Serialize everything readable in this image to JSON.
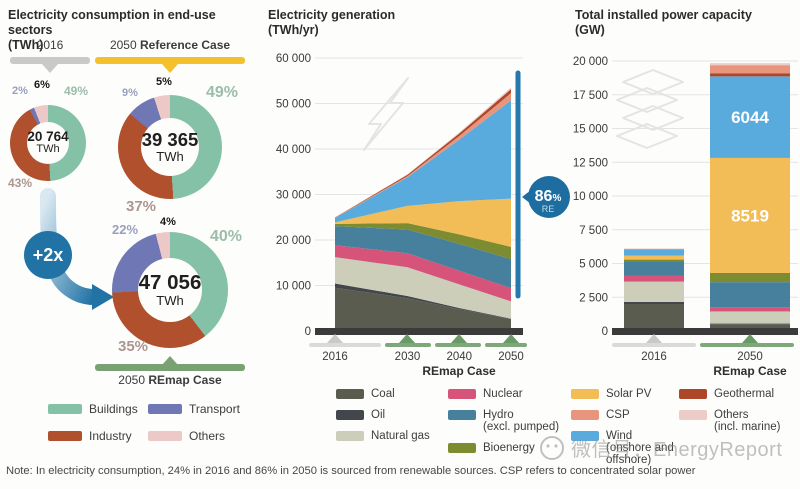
{
  "panels": {
    "consumption": {
      "title": "Electricity consumption in end-use sectors",
      "unit": "(TWh)",
      "header_2016": "2016",
      "header_ref_prefix": "2050 ",
      "header_ref_bold": "Reference Case",
      "footer_prefix": "2050 ",
      "footer_bold": "REmap Case",
      "growth_badge": "+2x",
      "colors": {
        "bar_2016": "#c9c9c9",
        "bar_ref": "#f3c02e",
        "bar_remap": "#7aa174",
        "badge_blue": "#2173a5"
      },
      "legend": [
        {
          "label": "Buildings",
          "color": "#85c1a7"
        },
        {
          "label": "Transport",
          "color": "#6f77b5"
        },
        {
          "label": "Industry",
          "color": "#b0502d"
        },
        {
          "label": "Others",
          "color": "#ecc9c7"
        }
      ]
    },
    "generation": {
      "title": "Electricity generation",
      "unit": "(TWh/yr)"
    },
    "capacity": {
      "title": "Total installed power capacity",
      "unit": "(GW)"
    }
  },
  "chart_data": [
    {
      "type": "pie",
      "subtype": "donut",
      "scenario": "2016",
      "center_value": "20 764",
      "center_unit": "TWh",
      "slices": [
        {
          "label": "Buildings",
          "pct": 49,
          "pct_label": "49%",
          "color": "#85c1a7"
        },
        {
          "label": "Industry",
          "pct": 43,
          "pct_label": "43%",
          "color": "#b0502d"
        },
        {
          "label": "Transport",
          "pct": 2,
          "pct_label": "2%",
          "color": "#6f77b5"
        },
        {
          "label": "Others",
          "pct": 6,
          "pct_label": "6%",
          "color": "#ecc9c7"
        }
      ]
    },
    {
      "type": "pie",
      "subtype": "donut",
      "scenario": "2050 Reference Case",
      "center_value": "39 365",
      "center_unit": "TWh",
      "slices": [
        {
          "label": "Buildings",
          "pct": 49,
          "pct_label": "49%",
          "color": "#85c1a7"
        },
        {
          "label": "Industry",
          "pct": 37,
          "pct_label": "37%",
          "color": "#b0502d"
        },
        {
          "label": "Transport",
          "pct": 9,
          "pct_label": "9%",
          "color": "#6f77b5"
        },
        {
          "label": "Others",
          "pct": 5,
          "pct_label": "5%",
          "color": "#ecc9c7"
        }
      ]
    },
    {
      "type": "pie",
      "subtype": "donut",
      "scenario": "2050 REmap Case",
      "center_value": "47 056",
      "center_unit": "TWh",
      "slices": [
        {
          "label": "Buildings",
          "pct": 40,
          "pct_label": "40%",
          "color": "#85c1a7"
        },
        {
          "label": "Industry",
          "pct": 35,
          "pct_label": "35%",
          "color": "#b0502d"
        },
        {
          "label": "Transport",
          "pct": 22,
          "pct_label": "22%",
          "color": "#6f77b5"
        },
        {
          "label": "Others",
          "pct": 4,
          "pct_label": "4%",
          "color": "#ecc9c7"
        }
      ]
    },
    {
      "type": "area",
      "title": "Electricity generation",
      "ylabel": "TWh/yr",
      "x": [
        2016,
        2030,
        2040,
        2050
      ],
      "x_labels": [
        "2016",
        "2030",
        "2040",
        "2050"
      ],
      "xcase_label": "REmap Case",
      "ylim": [
        0,
        60000
      ],
      "grid": true,
      "yticks": [
        {
          "v": 0,
          "label": "0"
        },
        {
          "v": 10000,
          "label": "10 000"
        },
        {
          "v": 20000,
          "label": "20 000"
        },
        {
          "v": 30000,
          "label": "30 000"
        },
        {
          "v": 40000,
          "label": "40 000"
        },
        {
          "v": 50000,
          "label": "50 000"
        },
        {
          "v": 60000,
          "label": "60 000"
        }
      ],
      "annotation": {
        "big": "86",
        "sym": "%",
        "sub": "RE",
        "color": "#1e6da0"
      },
      "series": [
        {
          "name": "Coal",
          "color": "#5a5c50",
          "values": [
            9500,
            7200,
            4800,
            2600
          ]
        },
        {
          "name": "Oil",
          "color": "#43474b",
          "values": [
            950,
            500,
            250,
            100
          ]
        },
        {
          "name": "Natural gas",
          "color": "#ccceba",
          "values": [
            5800,
            6300,
            5200,
            3800
          ]
        },
        {
          "name": "Nuclear",
          "color": "#d6537a",
          "values": [
            2600,
            3100,
            3000,
            2900
          ]
        },
        {
          "name": "Hydro (excl. pumped)",
          "color": "#47809c",
          "values": [
            4200,
            5200,
            5900,
            6400
          ]
        },
        {
          "name": "Bioenergy",
          "color": "#7d8b31",
          "values": [
            500,
            1400,
            2100,
            2700
          ]
        },
        {
          "name": "Solar PV",
          "color": "#f2bc57",
          "values": [
            330,
            3800,
            7300,
            10600
          ]
        },
        {
          "name": "Wind (onshore and offshore)",
          "color": "#5aabdd",
          "values": [
            960,
            6300,
            13500,
            21600
          ]
        },
        {
          "name": "CSP",
          "color": "#e8957e",
          "values": [
            12,
            250,
            800,
            1600
          ]
        },
        {
          "name": "Geothermal",
          "color": "#ae4628",
          "values": [
            80,
            300,
            550,
            850
          ]
        },
        {
          "name": "Others (incl. marine)",
          "color": "#edccc8",
          "values": [
            30,
            100,
            250,
            400
          ]
        }
      ]
    },
    {
      "type": "bar",
      "title": "Total installed power capacity",
      "ylabel": "GW",
      "categories": [
        "2016",
        "2050"
      ],
      "xcase_label": "REmap Case",
      "ylim": [
        0,
        20000
      ],
      "grid": true,
      "yticks": [
        {
          "v": 0,
          "label": "0"
        },
        {
          "v": 2500,
          "label": "2 500"
        },
        {
          "v": 5000,
          "label": "5 000"
        },
        {
          "v": 7500,
          "label": "7 500"
        },
        {
          "v": 10000,
          "label": "10 000"
        },
        {
          "v": 12500,
          "label": "12 500"
        },
        {
          "v": 15000,
          "label": "15 000"
        },
        {
          "v": 17500,
          "label": "17 500"
        },
        {
          "v": 20000,
          "label": "20 000"
        }
      ],
      "series": [
        {
          "name": "Coal",
          "color": "#5a5c50",
          "values": [
            2000,
            500
          ]
        },
        {
          "name": "Oil",
          "color": "#43474b",
          "values": [
            160,
            50
          ]
        },
        {
          "name": "Natural gas",
          "color": "#ccceba",
          "values": [
            1500,
            900
          ]
        },
        {
          "name": "Nuclear",
          "color": "#d6537a",
          "values": [
            420,
            320
          ]
        },
        {
          "name": "Hydro (excl. pumped)",
          "color": "#47809c",
          "values": [
            1100,
            1850
          ]
        },
        {
          "name": "Bioenergy",
          "color": "#7d8b31",
          "values": [
            110,
            680
          ]
        },
        {
          "name": "Solar PV",
          "color": "#f2bc57",
          "values": [
            300,
            8519
          ],
          "bar_label": "8519"
        },
        {
          "name": "Wind (onshore and offshore)",
          "color": "#5aabdd",
          "values": [
            480,
            6044
          ],
          "bar_label": "6044"
        },
        {
          "name": "Geothermal",
          "color": "#ae4628",
          "values": [
            13,
            230
          ]
        },
        {
          "name": "CSP",
          "color": "#e8957e",
          "values": [
            5,
            600
          ]
        },
        {
          "name": "Others (incl. marine)",
          "color": "#edccc8",
          "values": [
            10,
            150
          ]
        }
      ]
    }
  ],
  "energy_legend": {
    "columns": [
      [
        {
          "label": "Coal",
          "color": "#5a5c50"
        },
        {
          "label": "Oil",
          "color": "#43474b"
        },
        {
          "label": "Natural gas",
          "color": "#ccceba"
        }
      ],
      [
        {
          "label": "Nuclear",
          "color": "#d6537a"
        },
        {
          "label": "Hydro",
          "label2": "(excl. pumped)",
          "color": "#47809c"
        },
        {
          "label": "Bioenergy",
          "color": "#7d8b31"
        }
      ],
      [
        {
          "label": "Solar PV",
          "color": "#f2bc57"
        },
        {
          "label": "CSP",
          "color": "#e8957e"
        },
        {
          "label": "Wind",
          "label2": "(onshore and offshore)",
          "color": "#5aabdd"
        }
      ],
      [
        {
          "label": "Geothermal",
          "color": "#ae4628"
        },
        {
          "label": "Others",
          "label2": "(incl. marine)",
          "color": "#edccc8"
        }
      ]
    ]
  },
  "note": "Note: In electricity consumption, 24% in 2016 and 86% in 2050 is sourced from renewable sources. CSP refers to concentrated solar power",
  "watermark": {
    "text": "微信号：EnergyReport"
  }
}
